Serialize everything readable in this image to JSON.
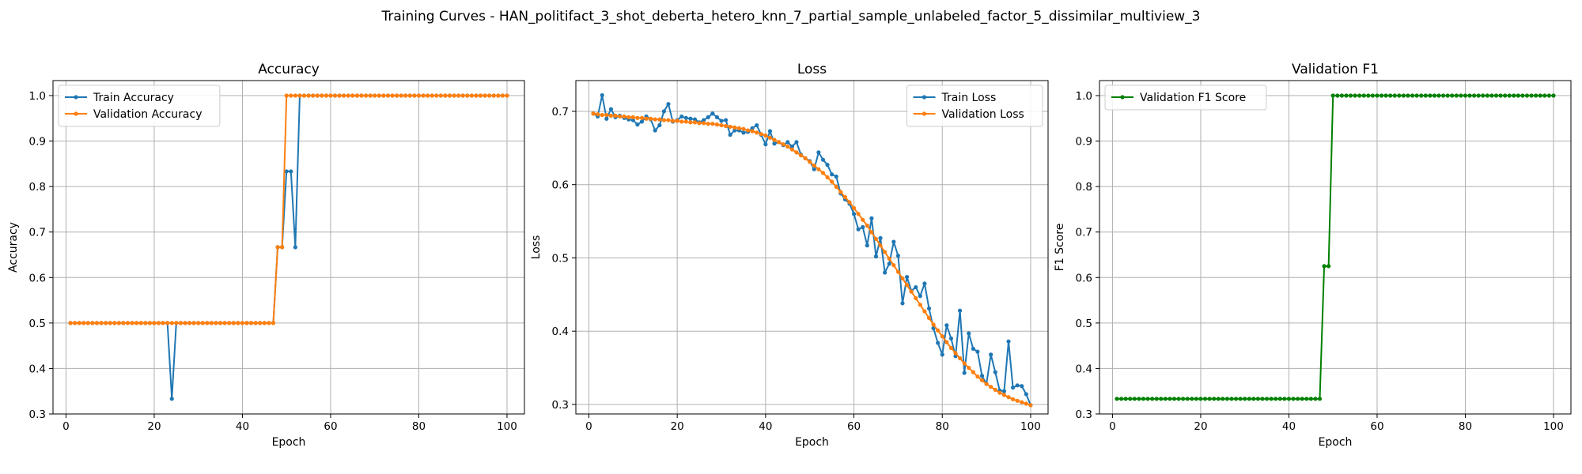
{
  "figure": {
    "suptitle": "Training Curves - HAN_politifact_3_shot_deberta_hetero_knn_7_partial_sample_unlabeled_factor_5_dissimilar_multiview_3"
  },
  "colors": {
    "blue": "#1f77b4",
    "orange": "#ff7f0e",
    "green": "#008000",
    "grid": "#b0b0b0"
  },
  "chart_data": [
    {
      "type": "line",
      "title": "Accuracy",
      "xlabel": "Epoch",
      "ylabel": "Accuracy",
      "xlim": [
        -2.95,
        103.95
      ],
      "ylim": [
        0.3,
        1.033
      ],
      "xticks": [
        0,
        20,
        40,
        60,
        80,
        100
      ],
      "yticks": [
        0.3,
        0.4,
        0.5,
        0.6,
        0.7,
        0.8,
        0.9,
        1.0
      ],
      "ytick_labels": [
        "0.3",
        "0.4",
        "0.5",
        "0.6",
        "0.7",
        "0.8",
        "0.9",
        "1.0"
      ],
      "grid": true,
      "legend_loc": "upper-left",
      "series": [
        {
          "name": "Train Accuracy",
          "color": "#1f77b4",
          "y": [
            0.5,
            0.5,
            0.5,
            0.5,
            0.5,
            0.5,
            0.5,
            0.5,
            0.5,
            0.5,
            0.5,
            0.5,
            0.5,
            0.5,
            0.5,
            0.5,
            0.5,
            0.5,
            0.5,
            0.5,
            0.5,
            0.5,
            0.5,
            0.3333,
            0.5,
            0.5,
            0.5,
            0.5,
            0.5,
            0.5,
            0.5,
            0.5,
            0.5,
            0.5,
            0.5,
            0.5,
            0.5,
            0.5,
            0.5,
            0.5,
            0.5,
            0.5,
            0.5,
            0.5,
            0.5,
            0.5,
            0.5,
            0.6667,
            0.6667,
            0.8333,
            0.8333,
            0.6667,
            1.0,
            1.0,
            1.0,
            1.0,
            1.0,
            1.0,
            1.0,
            1.0,
            1.0,
            1.0,
            1.0,
            1.0,
            1.0,
            1.0,
            1.0,
            1.0,
            1.0,
            1.0,
            1.0,
            1.0,
            1.0,
            1.0,
            1.0,
            1.0,
            1.0,
            1.0,
            1.0,
            1.0,
            1.0,
            1.0,
            1.0,
            1.0,
            1.0,
            1.0,
            1.0,
            1.0,
            1.0,
            1.0,
            1.0,
            1.0,
            1.0,
            1.0,
            1.0,
            1.0,
            1.0,
            1.0,
            1.0,
            1.0
          ]
        },
        {
          "name": "Validation Accuracy",
          "color": "#ff7f0e",
          "y": [
            0.5,
            0.5,
            0.5,
            0.5,
            0.5,
            0.5,
            0.5,
            0.5,
            0.5,
            0.5,
            0.5,
            0.5,
            0.5,
            0.5,
            0.5,
            0.5,
            0.5,
            0.5,
            0.5,
            0.5,
            0.5,
            0.5,
            0.5,
            0.5,
            0.5,
            0.5,
            0.5,
            0.5,
            0.5,
            0.5,
            0.5,
            0.5,
            0.5,
            0.5,
            0.5,
            0.5,
            0.5,
            0.5,
            0.5,
            0.5,
            0.5,
            0.5,
            0.5,
            0.5,
            0.5,
            0.5,
            0.5,
            0.6667,
            0.6667,
            1.0,
            1.0,
            1.0,
            1.0,
            1.0,
            1.0,
            1.0,
            1.0,
            1.0,
            1.0,
            1.0,
            1.0,
            1.0,
            1.0,
            1.0,
            1.0,
            1.0,
            1.0,
            1.0,
            1.0,
            1.0,
            1.0,
            1.0,
            1.0,
            1.0,
            1.0,
            1.0,
            1.0,
            1.0,
            1.0,
            1.0,
            1.0,
            1.0,
            1.0,
            1.0,
            1.0,
            1.0,
            1.0,
            1.0,
            1.0,
            1.0,
            1.0,
            1.0,
            1.0,
            1.0,
            1.0,
            1.0,
            1.0,
            1.0,
            1.0,
            1.0
          ]
        }
      ]
    },
    {
      "type": "line",
      "title": "Loss",
      "xlabel": "Epoch",
      "ylabel": "Loss",
      "xlim": [
        -2.95,
        103.95
      ],
      "ylim": [
        0.287,
        0.742
      ],
      "xticks": [
        0,
        20,
        40,
        60,
        80,
        100
      ],
      "yticks": [
        0.3,
        0.4,
        0.5,
        0.6,
        0.7
      ],
      "ytick_labels": [
        "0.3",
        "0.4",
        "0.5",
        "0.6",
        "0.7"
      ],
      "grid": true,
      "legend_loc": "upper-right",
      "series": [
        {
          "name": "Train Loss",
          "color": "#1f77b4",
          "y": [
            0.697,
            0.693,
            0.722,
            0.69,
            0.703,
            0.692,
            0.694,
            0.691,
            0.689,
            0.688,
            0.682,
            0.686,
            0.693,
            0.689,
            0.674,
            0.681,
            0.7,
            0.71,
            0.686,
            0.688,
            0.693,
            0.691,
            0.69,
            0.689,
            0.685,
            0.688,
            0.692,
            0.697,
            0.692,
            0.687,
            0.688,
            0.668,
            0.674,
            0.674,
            0.671,
            0.672,
            0.677,
            0.681,
            0.668,
            0.655,
            0.673,
            0.656,
            0.658,
            0.654,
            0.658,
            0.652,
            0.658,
            0.641,
            0.636,
            0.632,
            0.621,
            0.644,
            0.634,
            0.627,
            0.614,
            0.611,
            0.588,
            0.58,
            0.574,
            0.56,
            0.539,
            0.542,
            0.517,
            0.554,
            0.502,
            0.527,
            0.48,
            0.492,
            0.522,
            0.503,
            0.438,
            0.474,
            0.455,
            0.46,
            0.448,
            0.465,
            0.431,
            0.404,
            0.384,
            0.368,
            0.408,
            0.39,
            0.366,
            0.428,
            0.343,
            0.397,
            0.376,
            0.372,
            0.339,
            0.328,
            0.368,
            0.344,
            0.319,
            0.318,
            0.386,
            0.323,
            0.326,
            0.325,
            0.314,
            0.299
          ]
        },
        {
          "name": "Validation Loss",
          "color": "#ff7f0e",
          "y": [
            0.697,
            0.696,
            0.695,
            0.695,
            0.694,
            0.694,
            0.693,
            0.693,
            0.692,
            0.692,
            0.691,
            0.691,
            0.69,
            0.69,
            0.689,
            0.689,
            0.688,
            0.688,
            0.687,
            0.687,
            0.686,
            0.686,
            0.685,
            0.685,
            0.684,
            0.684,
            0.683,
            0.683,
            0.682,
            0.681,
            0.68,
            0.679,
            0.678,
            0.677,
            0.676,
            0.674,
            0.673,
            0.671,
            0.669,
            0.667,
            0.664,
            0.661,
            0.658,
            0.655,
            0.652,
            0.648,
            0.644,
            0.64,
            0.636,
            0.631,
            0.626,
            0.621,
            0.616,
            0.61,
            0.604,
            0.597,
            0.59,
            0.583,
            0.576,
            0.568,
            0.56,
            0.552,
            0.544,
            0.535,
            0.526,
            0.517,
            0.508,
            0.499,
            0.49,
            0.481,
            0.472,
            0.463,
            0.454,
            0.445,
            0.436,
            0.427,
            0.418,
            0.409,
            0.401,
            0.393,
            0.385,
            0.377,
            0.37,
            0.363,
            0.356,
            0.35,
            0.344,
            0.338,
            0.333,
            0.328,
            0.324,
            0.32,
            0.316,
            0.313,
            0.31,
            0.307,
            0.305,
            0.303,
            0.301,
            0.299
          ]
        }
      ]
    },
    {
      "type": "line",
      "title": "Validation F1",
      "xlabel": "Epoch",
      "ylabel": "F1 Score",
      "xlim": [
        -2.95,
        103.95
      ],
      "ylim": [
        0.3,
        1.033
      ],
      "xticks": [
        0,
        20,
        40,
        60,
        80,
        100
      ],
      "yticks": [
        0.3,
        0.4,
        0.5,
        0.6,
        0.7,
        0.8,
        0.9,
        1.0
      ],
      "ytick_labels": [
        "0.3",
        "0.4",
        "0.5",
        "0.6",
        "0.7",
        "0.8",
        "0.9",
        "1.0"
      ],
      "grid": true,
      "legend_loc": "upper-left",
      "series": [
        {
          "name": "Validation F1 Score",
          "color": "#008000",
          "y": [
            0.3333,
            0.3333,
            0.3333,
            0.3333,
            0.3333,
            0.3333,
            0.3333,
            0.3333,
            0.3333,
            0.3333,
            0.3333,
            0.3333,
            0.3333,
            0.3333,
            0.3333,
            0.3333,
            0.3333,
            0.3333,
            0.3333,
            0.3333,
            0.3333,
            0.3333,
            0.3333,
            0.3333,
            0.3333,
            0.3333,
            0.3333,
            0.3333,
            0.3333,
            0.3333,
            0.3333,
            0.3333,
            0.3333,
            0.3333,
            0.3333,
            0.3333,
            0.3333,
            0.3333,
            0.3333,
            0.3333,
            0.3333,
            0.3333,
            0.3333,
            0.3333,
            0.3333,
            0.3333,
            0.3333,
            0.625,
            0.625,
            1.0,
            1.0,
            1.0,
            1.0,
            1.0,
            1.0,
            1.0,
            1.0,
            1.0,
            1.0,
            1.0,
            1.0,
            1.0,
            1.0,
            1.0,
            1.0,
            1.0,
            1.0,
            1.0,
            1.0,
            1.0,
            1.0,
            1.0,
            1.0,
            1.0,
            1.0,
            1.0,
            1.0,
            1.0,
            1.0,
            1.0,
            1.0,
            1.0,
            1.0,
            1.0,
            1.0,
            1.0,
            1.0,
            1.0,
            1.0,
            1.0,
            1.0,
            1.0,
            1.0,
            1.0,
            1.0,
            1.0,
            1.0,
            1.0,
            1.0,
            1.0
          ]
        }
      ]
    }
  ]
}
